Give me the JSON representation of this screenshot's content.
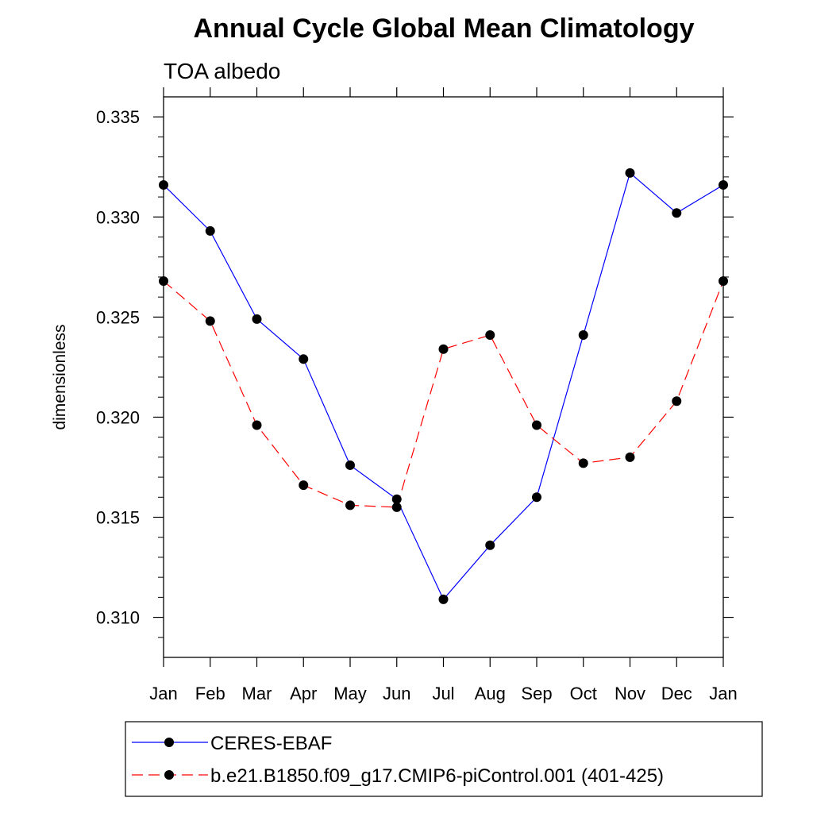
{
  "chart_data": {
    "type": "line",
    "title": "Annual Cycle Global Mean Climatology",
    "subtitle": "TOA albedo",
    "xlabel": "",
    "ylabel": "dimensionless",
    "categories": [
      "Jan",
      "Feb",
      "Mar",
      "Apr",
      "May",
      "Jun",
      "Jul",
      "Aug",
      "Sep",
      "Oct",
      "Nov",
      "Dec",
      "Jan"
    ],
    "ylim": [
      0.308,
      0.336
    ],
    "yticks": [
      0.31,
      0.315,
      0.32,
      0.325,
      0.33,
      0.335
    ],
    "ytick_labels": [
      "0.310",
      "0.315",
      "0.320",
      "0.325",
      "0.330",
      "0.335"
    ],
    "series": [
      {
        "name": "CERES-EBAF",
        "color": "#0000ff",
        "style": "solid",
        "values": [
          0.3316,
          0.3293,
          0.3249,
          0.3229,
          0.3176,
          0.3159,
          0.3109,
          0.3136,
          0.316,
          0.3241,
          0.3322,
          0.3302,
          0.3316
        ]
      },
      {
        "name": "b.e21.B1850.f09_g17.CMIP6-piControl.001 (401-425)",
        "color": "#ff0000",
        "style": "dashed",
        "values": [
          0.3268,
          0.3248,
          0.3196,
          0.3166,
          0.3156,
          0.3155,
          0.3234,
          0.3241,
          0.3196,
          0.3177,
          0.318,
          0.3208,
          0.3268
        ]
      }
    ],
    "legend_position": "bottom"
  }
}
